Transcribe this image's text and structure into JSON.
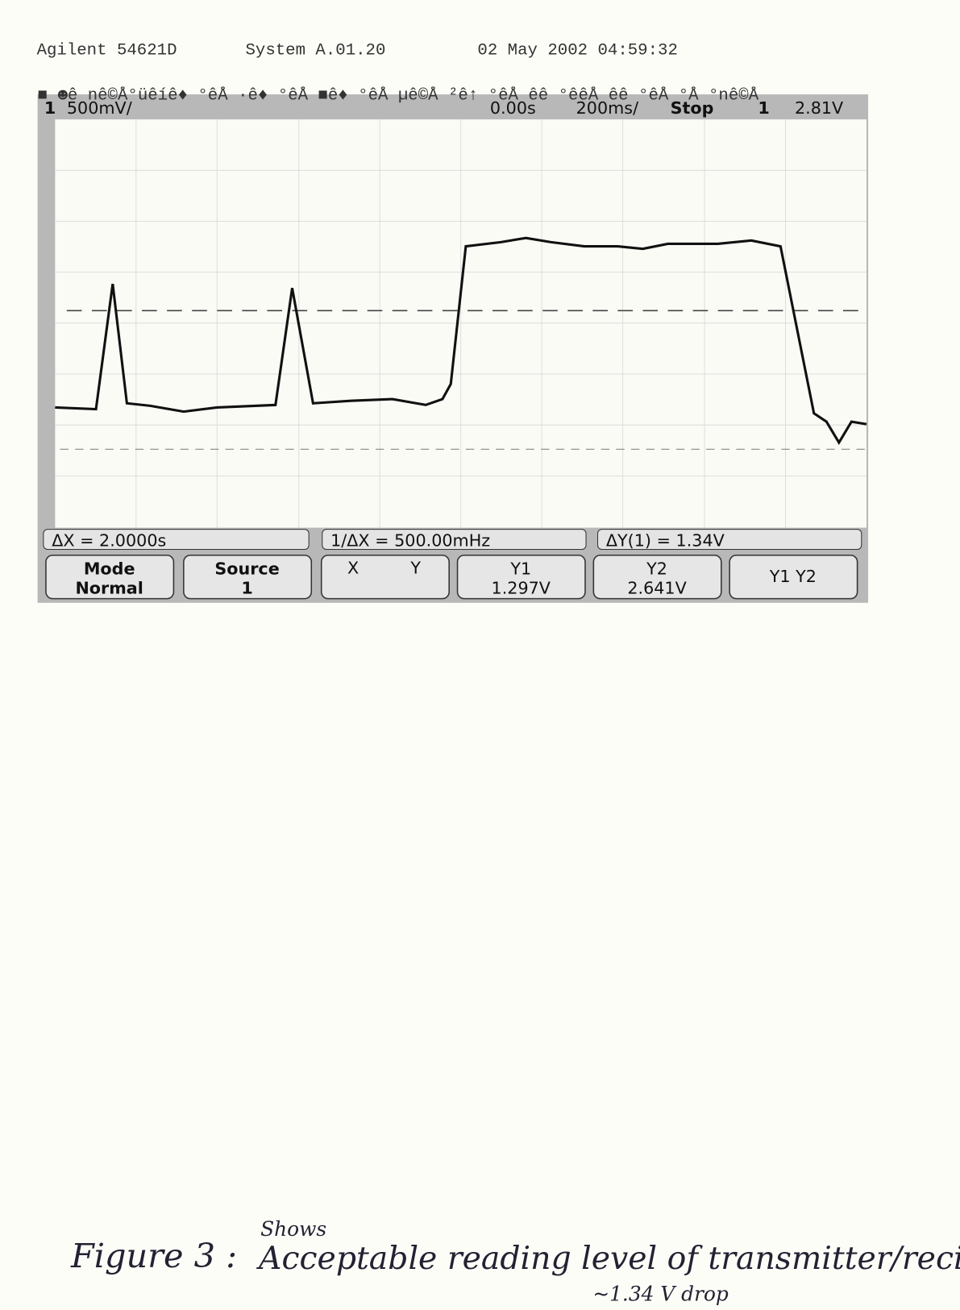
{
  "header": {
    "model": "Agilent 54621D",
    "system": "System A.01.20",
    "timestamp": "02 May 2002 04:59:32"
  },
  "glyph_row": "■ ☻ê  nê©Å°üêíê♦ °êÅ ·ê♦ °êÅ ■ê♦ °êÅ µê©Å ²ê↑ °êÅ êê °êêÅ êê °êÅ  °Å °nê©Å",
  "status": {
    "channel": "1",
    "volts_per_div": "500mV/",
    "delay": "0.00s",
    "time_per_div": "200ms/",
    "run_state": "Stop",
    "trigger_source": "1",
    "trigger_level": "2.81V"
  },
  "measurements": [
    "ΔX = 2.0000s",
    "1/ΔX = 500.00mHz",
    "ΔY(1) = 1.34V"
  ],
  "softkeys": [
    {
      "label": "Mode",
      "value": "Normal"
    },
    {
      "label": "Source",
      "value": "1"
    },
    {
      "label": "X",
      "value": "Y"
    },
    {
      "label": "Y1",
      "value": "1.297V"
    },
    {
      "label": "Y2",
      "value": "2.641V"
    },
    {
      "label": "Y1 Y2"
    }
  ],
  "annotation": {
    "figure": "Figure 3 :",
    "note_above": "Shows",
    "caption": "Acceptable reading level of transmitter/reciever",
    "note_below": "~1.34 V drop"
  }
}
